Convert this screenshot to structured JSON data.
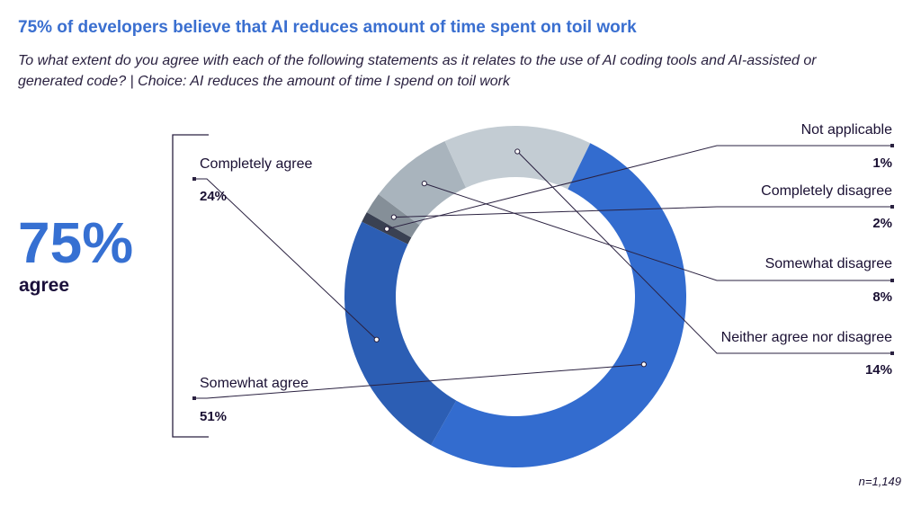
{
  "header": {
    "title": "75% of developers believe that AI reduces amount of time spent on toil work",
    "subtitle": "To what extent do you agree with each of the following statements as it relates to the use of AI coding tools and AI-assisted or generated code? | Choice: AI reduces the amount of time I spend on toil work"
  },
  "summary": {
    "percent": "75%",
    "label": "agree"
  },
  "footer": {
    "sample": "n=1,149"
  },
  "chart_data": {
    "type": "pie",
    "style": "donut",
    "categories": [
      "Not applicable",
      "Completely disagree",
      "Somewhat disagree",
      "Neither agree nor disagree",
      "Somewhat agree",
      "Completely agree"
    ],
    "values": [
      1,
      2,
      8,
      14,
      51,
      24
    ],
    "value_labels": [
      "1%",
      "2%",
      "8%",
      "14%",
      "51%",
      "24%"
    ],
    "colors": [
      "#3a4152",
      "#858f98",
      "#a9b4bd",
      "#c3ccd3",
      "#336ccf",
      "#2c5eb4"
    ]
  }
}
